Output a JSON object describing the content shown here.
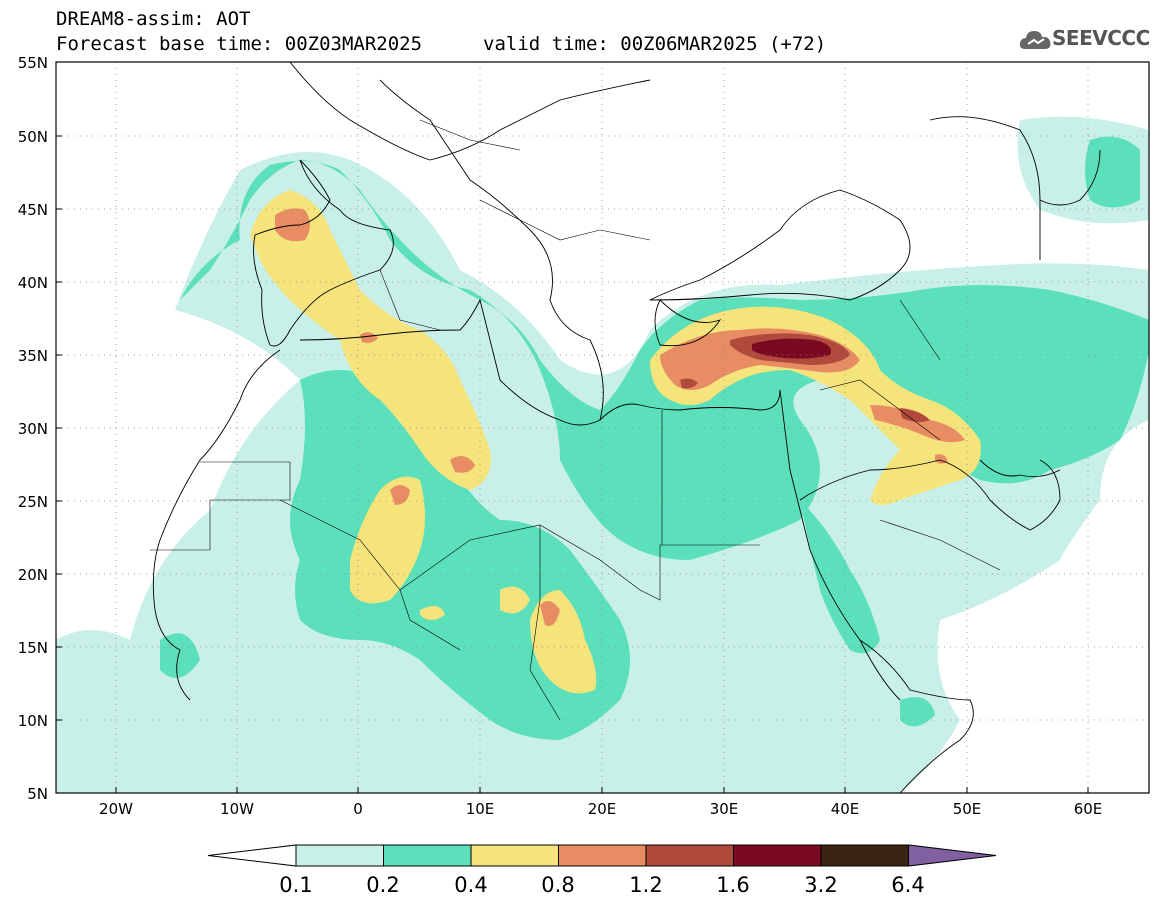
{
  "header": {
    "title": "DREAM8-assim: AOT",
    "base_time": "Forecast base time: 00Z03MAR2025",
    "valid_time": "valid time: 00Z06MAR2025 (+72)",
    "logo_text": "SEEVCCC",
    "logo_icon": "cloud-icon"
  },
  "map": {
    "variable": "AOT",
    "lat_labels": [
      "55N",
      "50N",
      "45N",
      "40N",
      "35N",
      "30N",
      "25N",
      "20N",
      "15N",
      "10N",
      "5N"
    ],
    "lon_labels": [
      "20W",
      "10W",
      "0",
      "10E",
      "20E",
      "30E",
      "40E",
      "50E",
      "60E"
    ]
  },
  "colorbar": {
    "labels": [
      "0.1",
      "0.2",
      "0.4",
      "0.8",
      "1.2",
      "1.6",
      "3.2",
      "6.4"
    ],
    "colors": [
      "#ffffff",
      "#c8f0e8",
      "#5ce0bc",
      "#f5e37c",
      "#e88c64",
      "#b04a3c",
      "#7a0a22",
      "#3a2414",
      "#8060a0"
    ]
  }
}
